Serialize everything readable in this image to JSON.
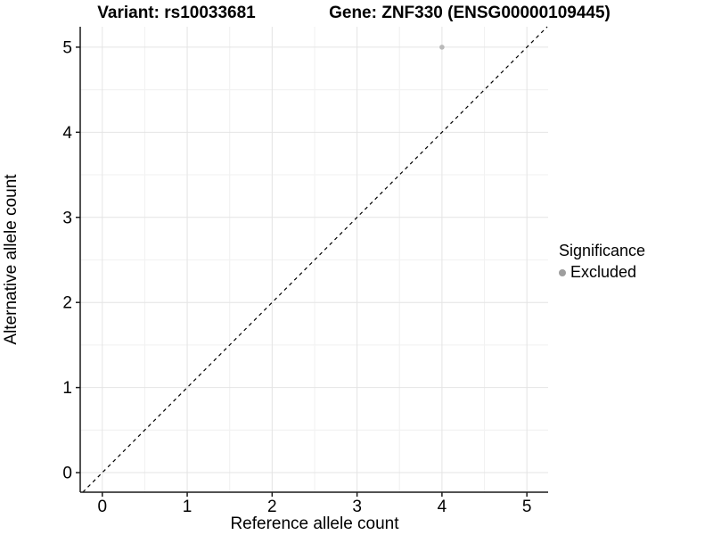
{
  "header": {
    "title_left": "Variant: rs10033681",
    "title_right": "Gene: ZNF330 (ENSG00000109445)"
  },
  "chart_data": {
    "type": "scatter",
    "title": "Variant: rs10033681    Gene: ZNF330 (ENSG00000109445)",
    "xlabel": "Reference allele count",
    "ylabel": "Alternative allele count",
    "x_ticks": [
      0,
      1,
      2,
      3,
      4,
      5
    ],
    "y_ticks": [
      0,
      1,
      2,
      3,
      4,
      5
    ],
    "xlim": [
      -0.26,
      5.25
    ],
    "ylim": [
      -0.23,
      5.24
    ],
    "grid": "major and minor gridlines on, light grey on white",
    "reference_line": {
      "type": "identity y=x",
      "style": "dashed",
      "color": "#000000"
    },
    "series": [
      {
        "name": "Excluded",
        "color": "#b9b9b9",
        "points": [
          {
            "x": 4,
            "y": 5
          }
        ]
      }
    ],
    "legend": {
      "title": "Significance",
      "position": "right",
      "items": [
        {
          "label": "Excluded",
          "color": "#9e9e9e"
        }
      ]
    }
  },
  "colors": {
    "background": "#ffffff",
    "axis_line": "#1a1a1a",
    "grid_major": "#e4e4e4",
    "grid_minor": "#f2f2f2",
    "tick_label": "#333333",
    "point": "#b9b9b9",
    "legend_key": "#9e9e9e"
  }
}
